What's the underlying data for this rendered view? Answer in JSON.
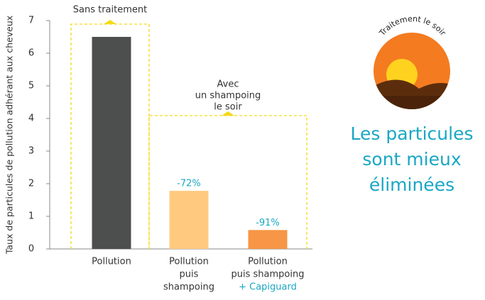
{
  "chart_data": {
    "type": "bar",
    "y_label": "Taux de particules de pollution adhérant aux cheveux",
    "categories": [
      [
        "Pollution"
      ],
      [
        "Pollution",
        "puis",
        "shampoing"
      ],
      [
        "Pollution",
        "puis shampoing",
        "+ Capiguard"
      ]
    ],
    "values": [
      6.5,
      1.78,
      0.58
    ],
    "colors": [
      "#4d4f4e",
      "#ffca80",
      "#f79646"
    ],
    "highlight_color": "#1aa7c4",
    "bar_annotations": [
      null,
      "-72%",
      "-91%"
    ],
    "bracket_labels": [
      [
        "Sans traitement"
      ],
      [
        "Avec",
        "un shampoing",
        "le soir"
      ]
    ],
    "bracket_color": "#f5d915",
    "ylim": [
      0,
      7
    ],
    "yticks": [
      0,
      1,
      2,
      3,
      4,
      5,
      6,
      7
    ]
  },
  "side_panel": {
    "badge": "Traitement le soir",
    "headline": [
      "Les particules",
      "sont mieux",
      "éliminées"
    ]
  }
}
